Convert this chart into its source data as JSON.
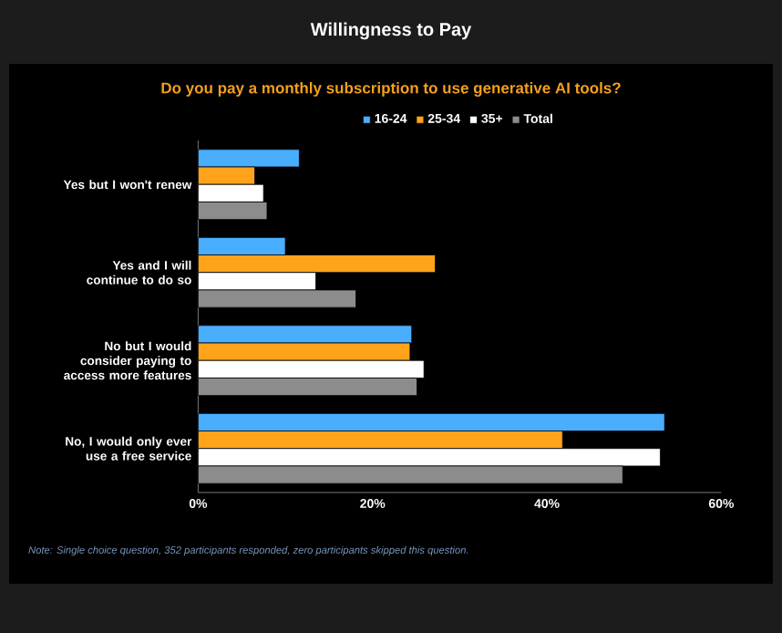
{
  "chart_data": {
    "type": "bar",
    "orientation": "horizontal",
    "title": "Willingness to Pay",
    "subtitle": "Do you pay a monthly subscription to use generative AI tools?",
    "categories": [
      "Yes but I won't renew",
      "Yes and I will continue to do so",
      "No but I would consider paying to access more features",
      "No, I would only ever use a free service"
    ],
    "series": [
      {
        "name": "16-24",
        "color": "#4aaeff",
        "values": [
          11.6,
          10.0,
          24.5,
          53.5
        ]
      },
      {
        "name": "25-34",
        "color": "#ffa31a",
        "values": [
          6.5,
          27.2,
          24.3,
          41.8
        ]
      },
      {
        "name": "35+",
        "color": "#ffffff",
        "values": [
          7.5,
          13.5,
          25.9,
          53.0
        ]
      },
      {
        "name": "Total",
        "color": "#8c8c8c",
        "values": [
          7.9,
          18.1,
          25.1,
          48.7
        ]
      }
    ],
    "xlim": [
      0,
      60
    ],
    "xticks": [
      {
        "value": 0,
        "label": "0%"
      },
      {
        "value": 20,
        "label": "20%"
      },
      {
        "value": 40,
        "label": "40%"
      },
      {
        "value": 60,
        "label": "60%"
      }
    ],
    "legend": "top",
    "annotations": [
      "Note: Single choice question, 352 participants responded, zero participants skipped this question."
    ]
  }
}
